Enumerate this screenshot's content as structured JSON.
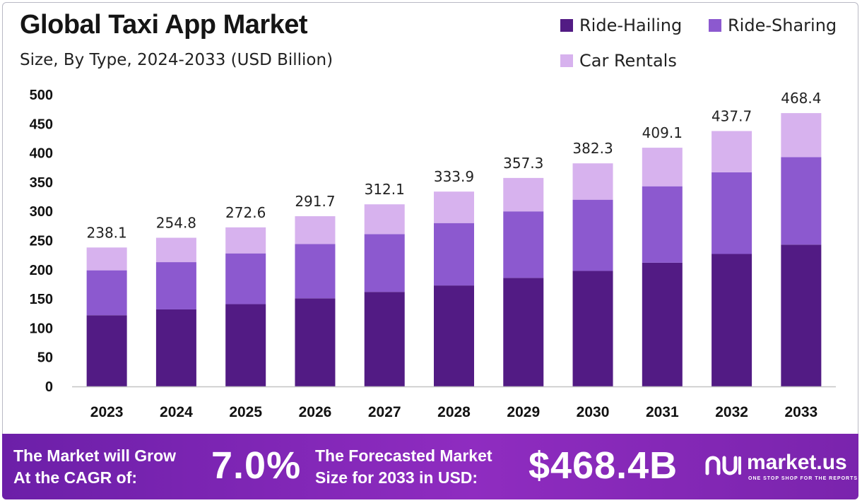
{
  "header": {
    "title": "Global Taxi App Market",
    "subtitle": "Size, By Type, 2024-2033 (USD Billion)"
  },
  "legend": [
    {
      "label": "Ride-Hailing",
      "color": "#521b84"
    },
    {
      "label": "Ride-Sharing",
      "color": "#8c59cf"
    },
    {
      "label": "Car Rentals",
      "color": "#d7b2ee"
    }
  ],
  "chart_data": {
    "type": "bar",
    "stacked": true,
    "title": "Global Taxi App Market",
    "subtitle": "Size, By Type, 2024-2033 (USD Billion)",
    "xlabel": "",
    "ylabel": "",
    "ylim": [
      0,
      500
    ],
    "yticks": [
      0,
      50,
      100,
      150,
      200,
      250,
      300,
      350,
      400,
      450,
      500
    ],
    "grid": false,
    "legend_position": "top-right",
    "categories": [
      "2023",
      "2024",
      "2025",
      "2026",
      "2027",
      "2028",
      "2029",
      "2030",
      "2031",
      "2032",
      "2033"
    ],
    "series": [
      {
        "name": "Ride-Hailing",
        "color": "#521b84",
        "values": [
          122,
          132,
          141,
          151,
          162,
          173,
          186,
          198,
          212,
          227,
          243
        ]
      },
      {
        "name": "Ride-Sharing",
        "color": "#8c59cf",
        "values": [
          77,
          81,
          87,
          93,
          99,
          107,
          114,
          122,
          131,
          140,
          150
        ]
      },
      {
        "name": "Car Rentals",
        "color": "#d7b2ee",
        "values": [
          39.1,
          41.8,
          44.6,
          47.7,
          51.1,
          53.9,
          57.3,
          62.3,
          66.1,
          70.7,
          75.4
        ]
      }
    ],
    "totals": [
      "238.1",
      "254.8",
      "272.6",
      "291.7",
      "312.1",
      "333.9",
      "357.3",
      "382.3",
      "409.1",
      "437.7",
      "468.4"
    ]
  },
  "footer": {
    "cagr_label_line1": "The Market will Grow",
    "cagr_label_line2": "At the CAGR of:",
    "cagr_value": "7.0%",
    "forecast_label_line1": "The Forecasted Market",
    "forecast_label_line2": "Size for 2033 in USD:",
    "forecast_value": "$468.4B",
    "brand_name": "market.us",
    "brand_tagline": "ONE STOP SHOP FOR THE REPORTS"
  }
}
